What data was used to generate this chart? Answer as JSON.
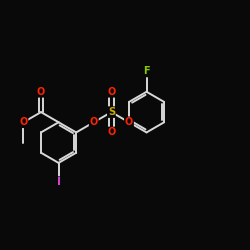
{
  "background": "#090909",
  "bond_color": "#d8d8d8",
  "atom_colors": {
    "O": "#ff2200",
    "S": "#ccaa00",
    "F": "#88cc00",
    "I": "#cc44cc",
    "C": "#d8d8d8"
  },
  "bond_width": 1.4,
  "font_size": 7,
  "figsize": [
    2.5,
    2.5
  ],
  "dpi": 100,
  "xlim": [
    -2.6,
    3.8
  ],
  "ylim": [
    -2.8,
    2.2
  ]
}
